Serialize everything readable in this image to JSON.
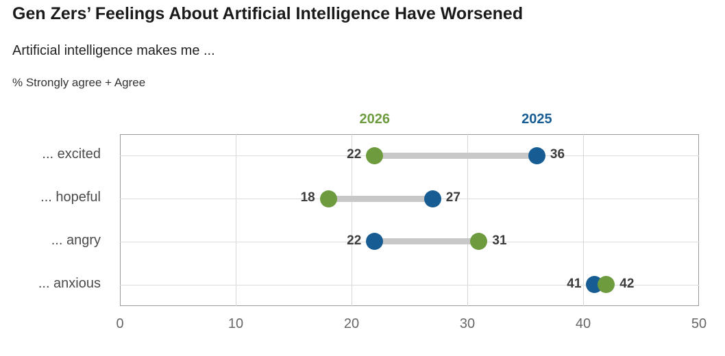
{
  "title": "Gen Zers’ Feelings About Artificial Intelligence Have Worsened",
  "subtitle": "Artificial intelligence makes me ...",
  "note": "% Strongly agree + Agree",
  "colors": {
    "green_2026": "#6d9b3e",
    "blue_2025": "#175d94",
    "connector": "#c8c8c8",
    "grid": "#d6d6d6",
    "value_label": "#3b3b3b",
    "category_label": "#4a4a4a",
    "tick_label": "#666666"
  },
  "chart_data": {
    "type": "scatter",
    "subtype": "dumbbell",
    "title": "Gen Zers’ Feelings About Artificial Intelligence Have Worsened",
    "xlabel": "",
    "ylabel": "",
    "xlim": [
      0,
      50
    ],
    "xticks": [
      0,
      10,
      20,
      30,
      40,
      50
    ],
    "grid": true,
    "legend_position": "top",
    "categories": [
      "... excited",
      "... hopeful",
      "... angry",
      "... anxious"
    ],
    "series": [
      {
        "name": "2025",
        "color_key": "blue_2025",
        "values": [
          36,
          27,
          22,
          41
        ]
      },
      {
        "name": "2026",
        "color_key": "green_2026",
        "values": [
          22,
          18,
          31,
          42
        ]
      }
    ],
    "legend": [
      {
        "label": "2026",
        "color_key": "green_2026",
        "at_value": 22
      },
      {
        "label": "2025",
        "color_key": "blue_2025",
        "at_value": 36
      }
    ]
  }
}
